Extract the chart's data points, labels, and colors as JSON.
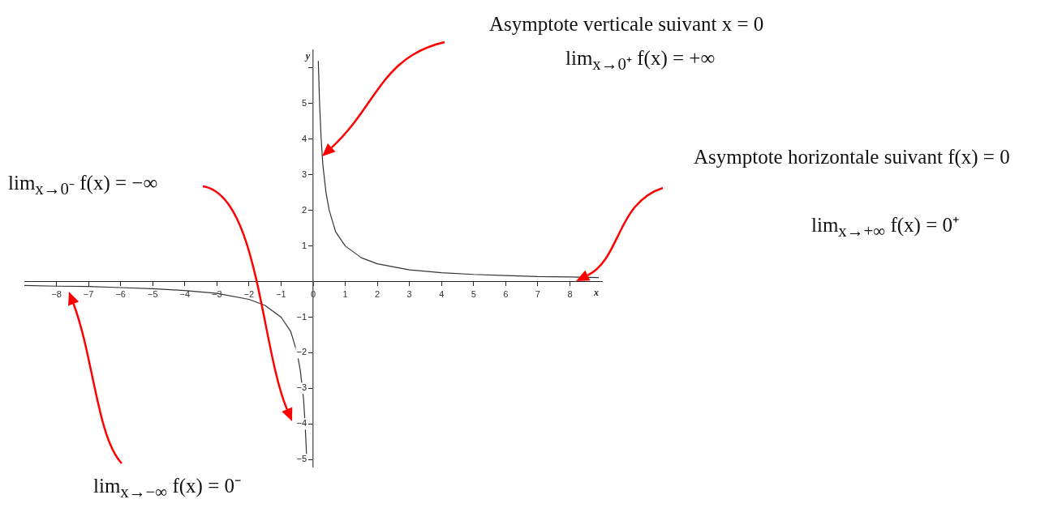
{
  "chart_data": {
    "type": "line",
    "xlabel": "x",
    "ylabel": "y",
    "xlim": [
      -9,
      9
    ],
    "ylim": [
      -5.2,
      6.5
    ],
    "xticks": [
      -8,
      -7,
      -6,
      -5,
      -4,
      -3,
      -2,
      -1,
      0,
      1,
      2,
      3,
      4,
      5,
      6,
      7,
      8
    ],
    "yticks": [
      -5,
      -4,
      -3,
      -2,
      -1,
      1,
      2,
      3,
      4,
      5,
      {
        "value": 6,
        "label": null
      }
    ],
    "grid": false,
    "legend": false,
    "marker": "none",
    "line_style": "solid",
    "series": [
      {
        "color": "#333333",
        "x": [
          0.16,
          0.2,
          0.25,
          0.3,
          0.4,
          0.5,
          0.7,
          1,
          1.5,
          2,
          3,
          4,
          5,
          6,
          7,
          8,
          8.9
        ],
        "values": [
          6.2,
          5,
          4,
          3.3,
          2.5,
          2,
          1.4,
          1,
          0.67,
          0.5,
          0.33,
          0.25,
          0.2,
          0.17,
          0.14,
          0.13,
          0.11
        ]
      },
      {
        "color": "#333333",
        "x": [
          -9,
          -8,
          -7,
          -6,
          -5,
          -4,
          -3,
          -2,
          -1.5,
          -1,
          -0.7,
          -0.5,
          -0.4,
          -0.3,
          -0.25,
          -0.2
        ],
        "values": [
          -0.11,
          -0.13,
          -0.14,
          -0.17,
          -0.2,
          -0.25,
          -0.33,
          -0.5,
          -0.67,
          -1,
          -1.4,
          -2,
          -2.5,
          -3.3,
          -4,
          -5
        ]
      }
    ],
    "annotations": [
      "Asymptote verticale suivant x = 0",
      "lim$_{x→0⁺}$ f(x) = +∞",
      "lim$_{x→0⁻}$ f(x) = −∞",
      "Asymptote horizontale suivant f(x) = 0",
      "lim$_{x→+∞}$ f(x) = 0⁺",
      "lim$_{x→−∞}$ f(x) = 0⁻"
    ]
  }
}
